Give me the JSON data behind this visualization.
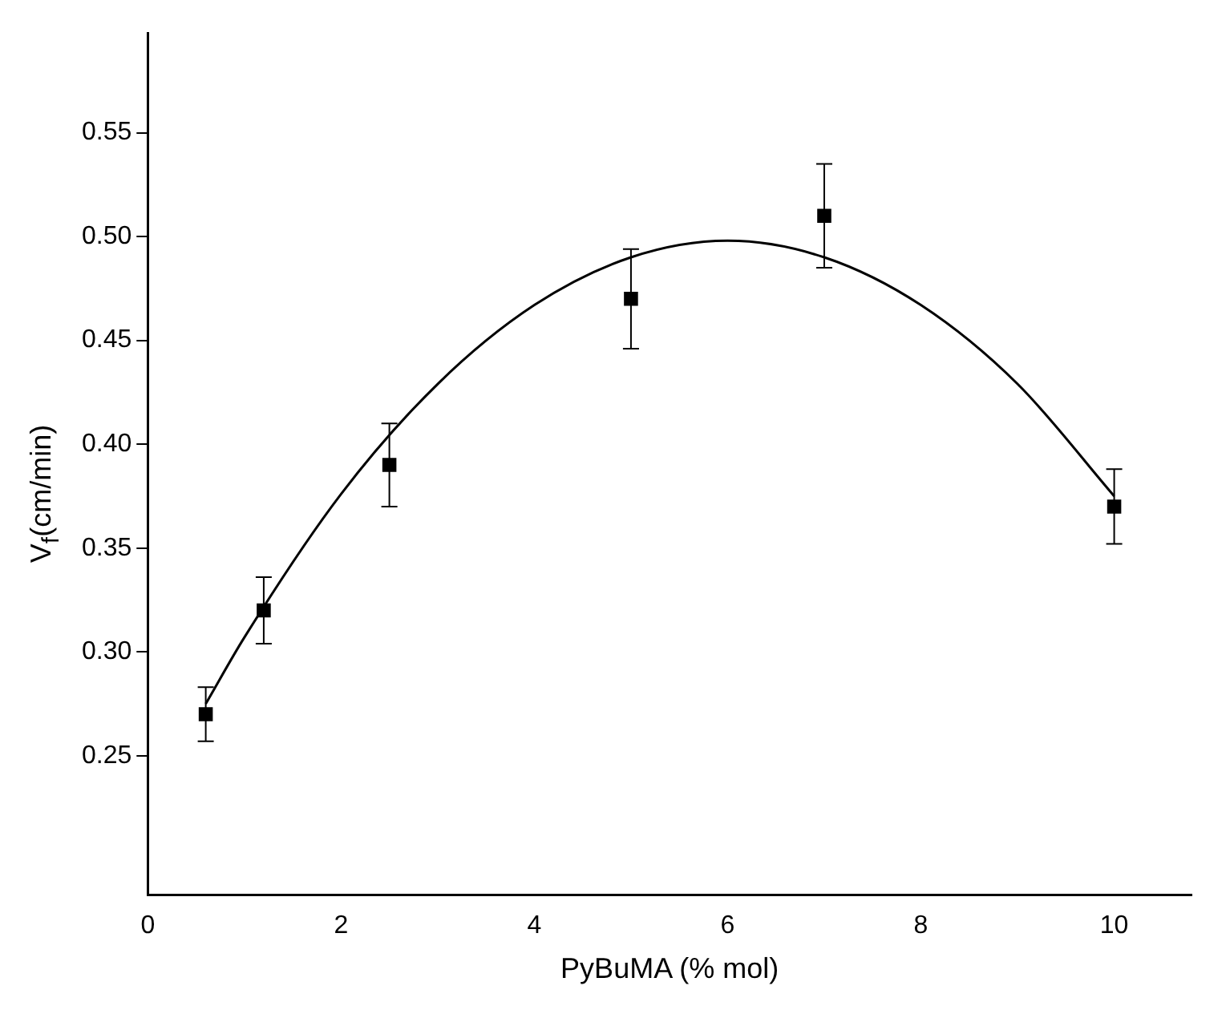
{
  "chart_data": {
    "type": "scatter",
    "xlabel": "PyBuMA (% mol)",
    "ylabel": "V$_{f}$(cm/min)",
    "xlim": [
      0,
      10.8
    ],
    "xticks": [
      0,
      2,
      4,
      6,
      8,
      10
    ],
    "ylim": [
      0.183,
      0.598
    ],
    "yticks": [
      {
        "value": 0.25,
        "label": "0.25"
      },
      {
        "value": 0.3,
        "label": "0.30"
      },
      {
        "value": 0.35,
        "label": "0.35"
      },
      {
        "value": 0.4,
        "label": "0.40"
      },
      {
        "value": 0.45,
        "label": "0.45"
      },
      {
        "value": 0.5,
        "label": "0.50"
      },
      {
        "value": 0.55,
        "label": "0.55"
      }
    ],
    "grid": false,
    "legend": false,
    "series": [
      {
        "color": "#000000",
        "marker": "square",
        "x": [
          0.6,
          1.2,
          2.5,
          5,
          7,
          10
        ],
        "values": [
          0.27,
          0.32,
          0.39,
          0.47,
          0.51,
          0.37
        ],
        "errors": [
          0.013,
          0.016,
          0.02,
          0.024,
          0.025,
          0.018
        ]
      },
      {
        "type": "line",
        "color": "#000000",
        "marker": "none",
        "line_style": "solid",
        "x": [
          0.6,
          1,
          2,
          3,
          4,
          5,
          6,
          7,
          8,
          9,
          10
        ],
        "values": [
          0.275,
          0.307,
          0.376,
          0.429,
          0.467,
          0.49,
          0.498,
          0.49,
          0.467,
          0.429,
          0.375
        ]
      }
    ]
  }
}
